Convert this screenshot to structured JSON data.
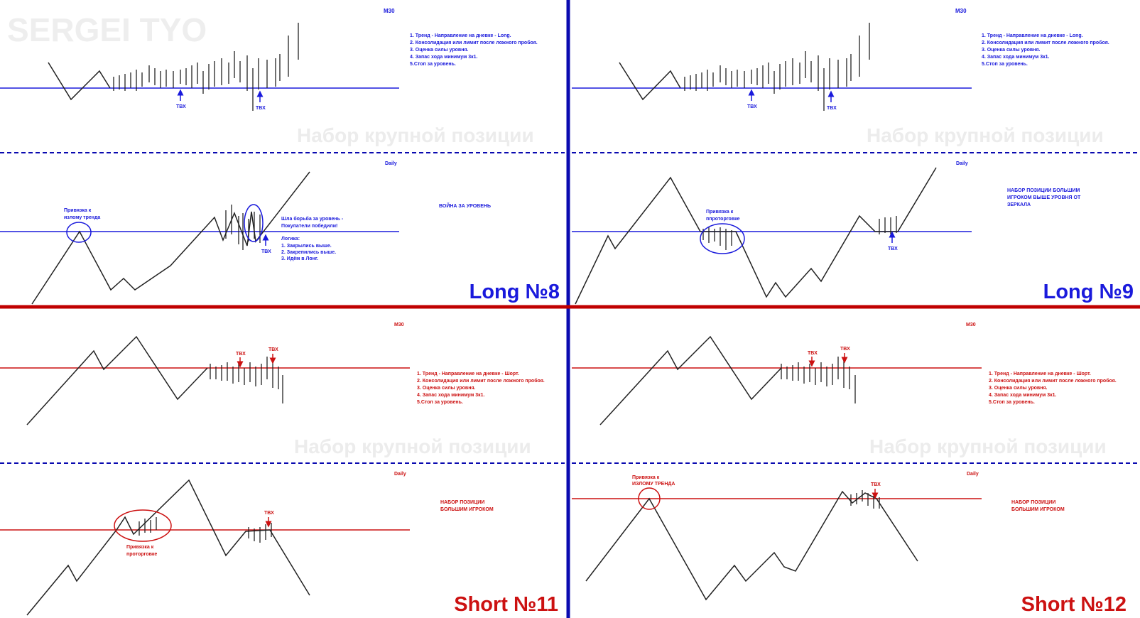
{
  "watermark": "SERGEI TYO",
  "watermark_position": "Набор крупной позиции",
  "colors": {
    "blue": "#1a1adc",
    "red": "#cc1111",
    "black": "#222222",
    "divider_blue": "#0a0ab0",
    "divider_red": "#c00000",
    "watermark": "#eeeeee"
  },
  "panels": {
    "long8": {
      "title": "Long №8",
      "m30": "M30",
      "daily": "Daily",
      "tvx1": "ТВХ",
      "tvx2": "ТВХ",
      "tvx3": "ТВХ",
      "rules": [
        "1. Тренд - Направление на дневке - Long.",
        "2. Консолидация или лимит после ложного пробоя.",
        "3. Оценка силы уровня.",
        "4. Запас хода минимум 3к1.",
        "5.Стоп за уровень."
      ],
      "war": "ВОЙНА ЗА УРОВЕНЬ",
      "anchor": [
        "Привязка к",
        "излому тренда"
      ],
      "fight": [
        "Шла борьба за уровень -",
        "Покупатели победили!"
      ],
      "logic": [
        "Логика:",
        "1. Закрылись выше.",
        "2. Закрепились выше.",
        "3. Идём в Лонг."
      ]
    },
    "long9": {
      "title": "Long №9",
      "m30": "M30",
      "daily": "Daily",
      "tvx1": "ТВХ",
      "tvx2": "ТВХ",
      "tvx3": "ТВХ",
      "rules": [
        "1. Тренд - Направление на дневке - Long.",
        "2. Консолидация или лимит после ложного пробоя.",
        "3. Оценка силы уровня.",
        "4. Запас хода минимум 3к1.",
        "5.Стоп за уровень."
      ],
      "mirror": [
        "НАБОР ПОЗИЦИИ БОЛЬШИМ",
        "ИГРОКОМ ВЫШЕ УРОВНЯ ОТ",
        "ЗЕРКАЛА"
      ],
      "anchor": [
        "Привязка к",
        "ппроторговке"
      ]
    },
    "short11": {
      "title": "Short №11",
      "m30": "M30",
      "daily": "Daily",
      "tvx1": "ТВХ",
      "tvx2": "ТВХ",
      "tvx3": "ТВХ",
      "rules": [
        "1. Тренд - Направление на дневке - Шорт.",
        "2. Консолидация или лимит после ложного пробоя.",
        "3. Оценка силы уровня.",
        "4. Запас хода минимум 3к1.",
        "5.Стоп за уровень."
      ],
      "big": [
        "НАБОР ПОЗИЦИИ",
        "БОЛЬШИМ ИГРОКОМ"
      ],
      "anchor": [
        "Привязка к",
        "проторговке"
      ]
    },
    "short12": {
      "title": "Short №12",
      "m30": "M30",
      "daily": "Daily",
      "tvx1": "ТВХ",
      "tvx2": "ТВХ",
      "tvx3": "ТВХ",
      "rules": [
        "1. Тренд - Направление на дневке - Шорт.",
        "2. Консолидация или лимит после ложного пробоя.",
        "3. Оценка силы уровня.",
        "4. Запас хода минимум 3к1.",
        "5.Стоп за уровень."
      ],
      "big": [
        "НАБОР ПОЗИЦИИ",
        "БОЛЬШИМ ИГРОКОМ"
      ],
      "anchor": [
        "Привязка к",
        "ИЗЛОМУ ТРЕНДА"
      ]
    }
  }
}
